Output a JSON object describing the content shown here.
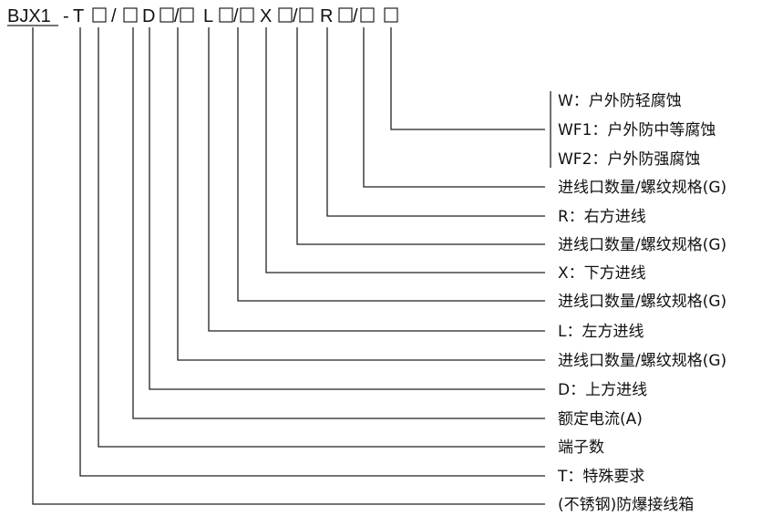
{
  "model_code": {
    "prefix": "BJX1",
    "dash": "-",
    "parts": [
      {
        "id": "T",
        "text": "T"
      },
      {
        "id": "slash",
        "text": "/"
      },
      {
        "id": "D",
        "text": "D"
      },
      {
        "id": "L",
        "text": "L"
      },
      {
        "id": "X",
        "text": "X"
      },
      {
        "id": "R",
        "text": "R"
      }
    ]
  },
  "corrosion_options": [
    {
      "id": "W",
      "text": "W：户外防轻腐蚀"
    },
    {
      "id": "WF1",
      "text": "WF1：户外防中等腐蚀"
    },
    {
      "id": "WF2",
      "text": "WF2：户外防强腐蚀"
    }
  ],
  "legend": [
    {
      "id": "r-inlet-spec",
      "text": "进线口数量/螺纹规格(G)"
    },
    {
      "id": "r-dir",
      "text": "R：右方进线"
    },
    {
      "id": "x-inlet-spec",
      "text": "进线口数量/螺纹规格(G)"
    },
    {
      "id": "x-dir",
      "text": "X：下方进线"
    },
    {
      "id": "l-inlet-spec",
      "text": "进线口数量/螺纹规格(G)"
    },
    {
      "id": "l-dir",
      "text": "L：左方进线"
    },
    {
      "id": "d-inlet-spec",
      "text": "进线口数量/螺纹规格(G)"
    },
    {
      "id": "d-dir",
      "text": "D：上方进线"
    },
    {
      "id": "rated-current",
      "text": "额定电流(A)"
    },
    {
      "id": "terminal-count",
      "text": "端子数"
    },
    {
      "id": "special-req",
      "text": "T：特殊要求"
    },
    {
      "id": "box-type",
      "text": "(不锈钢)防爆接线箱"
    }
  ]
}
